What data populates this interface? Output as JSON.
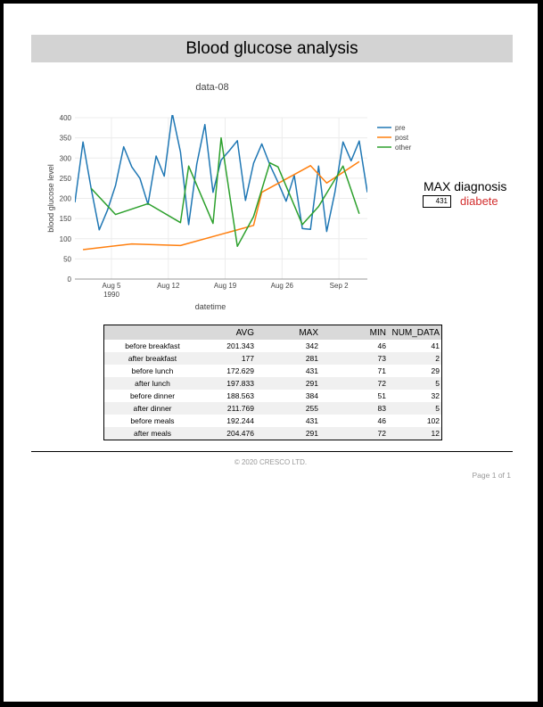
{
  "report": {
    "title": "Blood glucose analysis",
    "footer": "© 2020 CRESCO LTD.",
    "page": "Page 1 of 1"
  },
  "chart_data": {
    "type": "line",
    "title": "data-08",
    "xlabel": "datetime",
    "ylabel": "blood glucose level",
    "ylim": [
      0,
      400
    ],
    "yticks": [
      "0",
      "50",
      "100",
      "150",
      "200",
      "250",
      "300",
      "350",
      "400"
    ],
    "xticks": [
      {
        "day": 5,
        "label": "Aug 5",
        "sub": "1990"
      },
      {
        "day": 12,
        "label": "Aug 12",
        "sub": ""
      },
      {
        "day": 19,
        "label": "Aug 19",
        "sub": ""
      },
      {
        "day": 26,
        "label": "Aug 26",
        "sub": ""
      },
      {
        "day": 33,
        "label": "Sep 2",
        "sub": ""
      }
    ],
    "xlim": [
      0.5,
      36.5
    ],
    "grid": true,
    "legend_position": "top-right",
    "series": [
      {
        "name": "pre",
        "color": "#1f77b4",
        "x": [
          0.5,
          1.5,
          2.5,
          3.5,
          4.5,
          5.5,
          6.5,
          7.5,
          8.5,
          9.5,
          10.5,
          11.5,
          12.5,
          13.5,
          14.5,
          15.5,
          16.5,
          17.5,
          18.5,
          19.5,
          20.5,
          21.5,
          22.5,
          23.5,
          24.5,
          25.5,
          26.5,
          27.5,
          28.5,
          29.5,
          30.5,
          31.5,
          32.5,
          33.5,
          34.5,
          35.5,
          36.5
        ],
        "y": [
          190,
          340,
          225,
          122,
          170,
          232,
          328,
          278,
          250,
          185,
          305,
          255,
          410,
          315,
          135,
          285,
          383,
          215,
          295,
          318,
          343,
          195,
          287,
          335,
          283,
          240,
          193,
          257,
          125,
          123,
          280,
          118,
          215,
          340,
          293,
          342,
          215
        ]
      },
      {
        "name": "post",
        "color": "#ff7f0e",
        "x": [
          1.5,
          7.5,
          13.5,
          22.5,
          23.5,
          29.5,
          31.5,
          35.5
        ],
        "y": [
          73,
          87,
          83,
          133,
          215,
          281,
          238,
          291
        ]
      },
      {
        "name": "other",
        "color": "#2ca02c",
        "x": [
          2.5,
          5.5,
          9.5,
          13.5,
          14.5,
          17.5,
          18.5,
          20.5,
          22.5,
          24.5,
          25.5,
          28.5,
          30.5,
          33.5,
          35.5
        ],
        "y": [
          225,
          160,
          187,
          140,
          280,
          138,
          350,
          81,
          155,
          288,
          278,
          135,
          180,
          280,
          162
        ]
      }
    ]
  },
  "diagnosis": {
    "label": "MAX diagnosis",
    "value": "431",
    "result": "diabete",
    "result_color": "#d32f2f"
  },
  "stats_table": {
    "headers": [
      "",
      "AVG",
      "MAX",
      "MIN",
      "NUM_DATA"
    ],
    "rows": [
      [
        "before breakfast",
        "201.343",
        "342",
        "46",
        "41"
      ],
      [
        "after breakfast",
        "177",
        "281",
        "73",
        "2"
      ],
      [
        "before lunch",
        "172.629",
        "431",
        "71",
        "29"
      ],
      [
        "after lunch",
        "197.833",
        "291",
        "72",
        "5"
      ],
      [
        "before dinner",
        "188.563",
        "384",
        "51",
        "32"
      ],
      [
        "after dinner",
        "211.769",
        "255",
        "83",
        "5"
      ],
      [
        "before meals",
        "192.244",
        "431",
        "46",
        "102"
      ],
      [
        "after meals",
        "204.476",
        "291",
        "72",
        "12"
      ]
    ]
  }
}
